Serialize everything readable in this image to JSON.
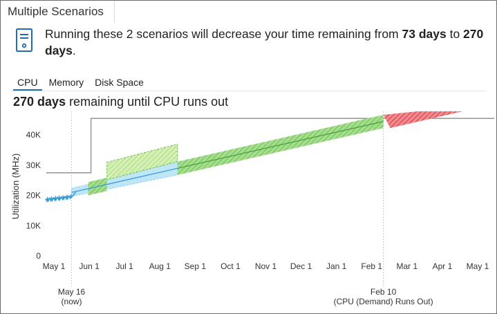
{
  "window": {
    "title": "Multiple Scenarios"
  },
  "summary": {
    "prefix": "Running these 2 scenarios will decrease your time remaining from ",
    "from_days": "73 days",
    "middle": " to ",
    "to_days": "270 days",
    "suffix": "."
  },
  "tabs": [
    {
      "label": "CPU",
      "active": true
    },
    {
      "label": "Memory",
      "active": false
    },
    {
      "label": "Disk Space",
      "active": false
    }
  ],
  "headline": {
    "days": "270 days",
    "rest": " remaining until CPU runs out"
  },
  "colors": {
    "usage": "#3a9ad4",
    "projection_fill": "#bfe6f7",
    "growth": "#8fd07a",
    "runout": "#e4535a",
    "capacity": "#8a8a8a",
    "tab_active": "#1e6cb4"
  },
  "chart_data": {
    "type": "line",
    "ylabel": "Utilization (MHz)",
    "y_ticks": [
      "0",
      "10K",
      "20K",
      "30K",
      "40K"
    ],
    "ylim": [
      0,
      46000
    ],
    "x_ticks": [
      "May 1",
      "Jun 1",
      "Jul 1",
      "Aug 1",
      "Sep 1",
      "Oct 1",
      "Nov 1",
      "Dec 1",
      "Jan 1",
      "Feb 1",
      "Mar 1",
      "Apr 1",
      "May 1"
    ],
    "xlim": [
      "May 1",
      "May 1 (next year)"
    ],
    "grid": false,
    "series": [],
    "capacity_line": {
      "before_change": 27500,
      "after_change": 45500,
      "change_date": "May 16"
    },
    "observed_usage": {
      "start": 18500,
      "end": 19500,
      "until": "May 16"
    },
    "projected_usage": {
      "start": 21000,
      "end": 44500,
      "from": "May 16",
      "to": "Feb 10"
    },
    "scenario_increase": {
      "start": 31000,
      "end": 37000,
      "from": "Jun 16",
      "to": "Aug 16"
    },
    "runout_projection": {
      "start": 44500,
      "end": 49000,
      "from": "Feb 10",
      "to": "May 1"
    },
    "markers": [
      {
        "label": "May 16",
        "sublabel": "(now)"
      },
      {
        "label": "Feb 10",
        "sublabel": "(CPU (Demand) Runs Out)"
      }
    ]
  }
}
